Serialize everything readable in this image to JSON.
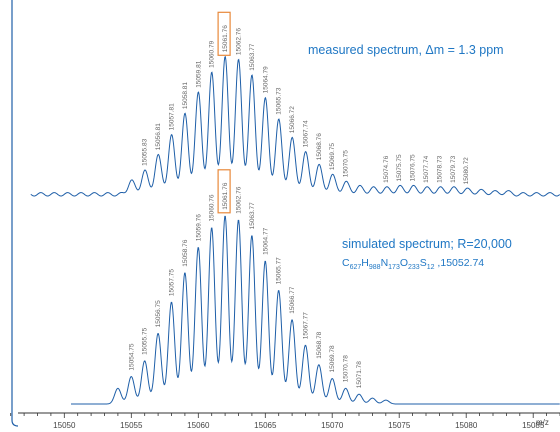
{
  "chart_data": [
    {
      "type": "line",
      "panel": "top",
      "annotation": "measured spectrum, Δm = 1.3 ppm",
      "series_color": "#1f5fa8",
      "highlight_color": "#e8883a",
      "envelope": {
        "center": 15061.76,
        "sigma": 3.2
      },
      "peaks": [
        {
          "x": 15055.0,
          "y": 0.1,
          "label": ""
        },
        {
          "x": 15056.0,
          "y": 0.17,
          "label": "15055.83"
        },
        {
          "x": 15057.0,
          "y": 0.28,
          "label": "15056.81"
        },
        {
          "x": 15058.0,
          "y": 0.42,
          "label": "15057.81"
        },
        {
          "x": 15059.0,
          "y": 0.57,
          "label": "15058.81"
        },
        {
          "x": 15060.0,
          "y": 0.72,
          "label": "15059.81"
        },
        {
          "x": 15061.0,
          "y": 0.86,
          "label": "15060.79"
        },
        {
          "x": 15062.0,
          "y": 0.97,
          "label": "15061.76"
        },
        {
          "x": 15063.0,
          "y": 0.95,
          "label": "15062.76"
        },
        {
          "x": 15064.0,
          "y": 0.84,
          "label": "15063.77"
        },
        {
          "x": 15065.0,
          "y": 0.68,
          "label": "15064.79"
        },
        {
          "x": 15066.0,
          "y": 0.53,
          "label": "15065.73"
        },
        {
          "x": 15067.0,
          "y": 0.4,
          "label": "15066.72"
        },
        {
          "x": 15068.0,
          "y": 0.3,
          "label": "15067.74"
        },
        {
          "x": 15069.0,
          "y": 0.21,
          "label": "15068.76"
        },
        {
          "x": 15070.0,
          "y": 0.14,
          "label": "15069.75"
        },
        {
          "x": 15071.0,
          "y": 0.09,
          "label": "15070.75"
        },
        {
          "x": 15072.0,
          "y": 0.06,
          "label": ""
        },
        {
          "x": 15073.0,
          "y": 0.05,
          "label": ""
        },
        {
          "x": 15074.0,
          "y": 0.05,
          "label": "15074.76"
        },
        {
          "x": 15075.0,
          "y": 0.06,
          "label": "15075.75"
        },
        {
          "x": 15076.0,
          "y": 0.06,
          "label": "15076.75"
        },
        {
          "x": 15077.0,
          "y": 0.05,
          "label": "15077.74"
        },
        {
          "x": 15078.0,
          "y": 0.05,
          "label": "15078.73"
        },
        {
          "x": 15079.0,
          "y": 0.05,
          "label": "15079.73"
        },
        {
          "x": 15080.0,
          "y": 0.04,
          "label": "15080.72"
        },
        {
          "x": 15081.0,
          "y": 0.03,
          "label": ""
        },
        {
          "x": 15082.0,
          "y": 0.02,
          "label": ""
        },
        {
          "x": 15083.0,
          "y": 0.02,
          "label": ""
        }
      ],
      "highlight_label": "15061.76"
    },
    {
      "type": "line",
      "panel": "bottom",
      "annotation": "simulated spectrum; R=20,000",
      "formula": {
        "parts": [
          {
            "t": "C",
            "sub": false
          },
          {
            "t": "627",
            "sub": true
          },
          {
            "t": "H",
            "sub": false
          },
          {
            "t": "988",
            "sub": true
          },
          {
            "t": "N",
            "sub": false
          },
          {
            "t": "173",
            "sub": true
          },
          {
            "t": "O",
            "sub": false
          },
          {
            "t": "233",
            "sub": true
          },
          {
            "t": "S",
            "sub": false
          },
          {
            "t": "12",
            "sub": true
          },
          {
            "t": " ,15052.74",
            "sub": false
          }
        ]
      },
      "series_color": "#1f5fa8",
      "highlight_color": "#e8883a",
      "peaks": [
        {
          "x": 15054.0,
          "y": 0.08,
          "label": ""
        },
        {
          "x": 15055.0,
          "y": 0.14,
          "label": "15054.75"
        },
        {
          "x": 15056.0,
          "y": 0.22,
          "label": "15055.75"
        },
        {
          "x": 15057.0,
          "y": 0.36,
          "label": "15056.75"
        },
        {
          "x": 15058.0,
          "y": 0.52,
          "label": "15057.75"
        },
        {
          "x": 15059.0,
          "y": 0.67,
          "label": "15058.76"
        },
        {
          "x": 15060.0,
          "y": 0.8,
          "label": "15059.76"
        },
        {
          "x": 15061.0,
          "y": 0.9,
          "label": "15060.76"
        },
        {
          "x": 15062.0,
          "y": 0.96,
          "label": "15061.76"
        },
        {
          "x": 15063.0,
          "y": 0.94,
          "label": "15062.76"
        },
        {
          "x": 15064.0,
          "y": 0.86,
          "label": "15063.77"
        },
        {
          "x": 15065.0,
          "y": 0.73,
          "label": "15064.77"
        },
        {
          "x": 15066.0,
          "y": 0.58,
          "label": "15065.77"
        },
        {
          "x": 15067.0,
          "y": 0.43,
          "label": "15066.77"
        },
        {
          "x": 15068.0,
          "y": 0.3,
          "label": "15067.77"
        },
        {
          "x": 15069.0,
          "y": 0.2,
          "label": "15068.78"
        },
        {
          "x": 15070.0,
          "y": 0.13,
          "label": "15069.78"
        },
        {
          "x": 15071.0,
          "y": 0.08,
          "label": "15070.78"
        },
        {
          "x": 15072.0,
          "y": 0.05,
          "label": "15071.78"
        },
        {
          "x": 15073.0,
          "y": 0.03,
          "label": ""
        },
        {
          "x": 15074.0,
          "y": 0.02,
          "label": ""
        }
      ],
      "highlight_label": "15061.76"
    }
  ],
  "x_axis": {
    "range": [
      15045.2,
      15087.0
    ],
    "major_ticks": [
      15050,
      15055,
      15060,
      15065,
      15070,
      15075,
      15080,
      15085
    ],
    "minor_step": 1,
    "unit": "m/z"
  }
}
